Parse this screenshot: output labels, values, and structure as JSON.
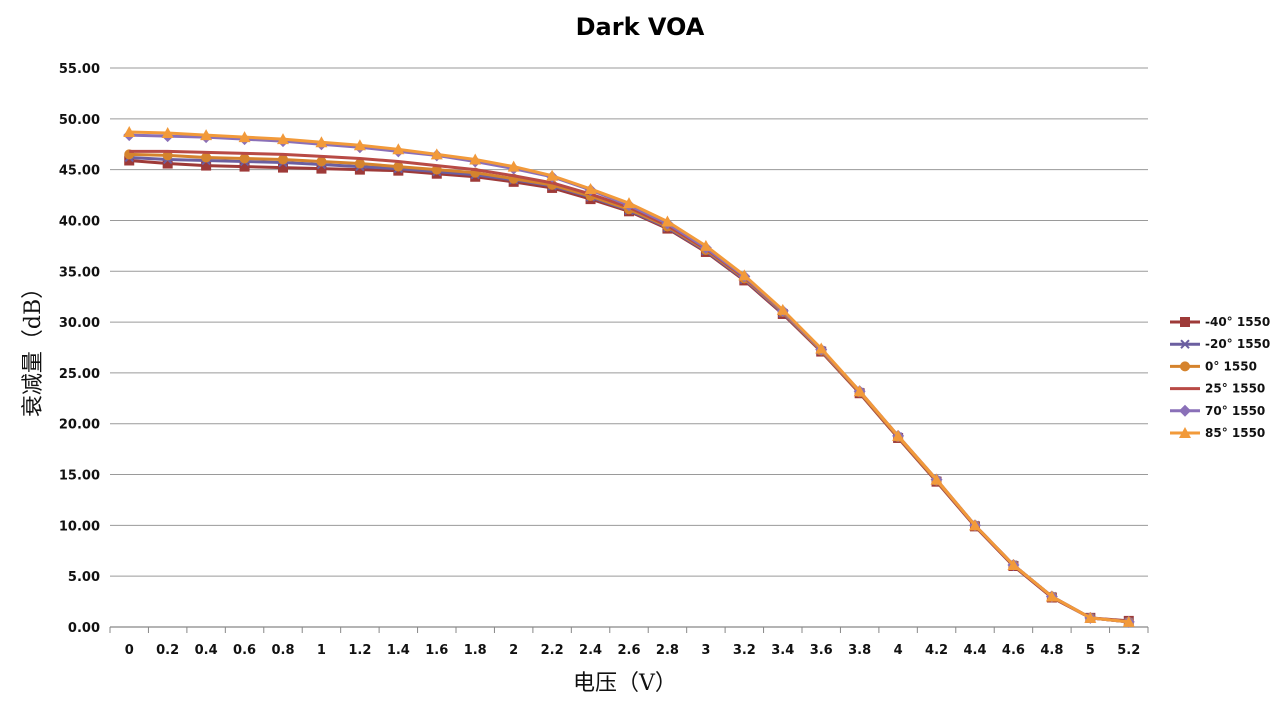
{
  "chart_data": {
    "type": "line",
    "title": "Dark VOA",
    "xlabel": "电压（V）",
    "ylabel": "衰减量（dB）",
    "x": [
      "0",
      "0.2",
      "0.4",
      "0.6",
      "0.8",
      "1",
      "1.2",
      "1.4",
      "1.6",
      "1.8",
      "2",
      "2.2",
      "2.4",
      "2.6",
      "2.8",
      "3",
      "3.2",
      "3.4",
      "3.6",
      "3.8",
      "4",
      "4.2",
      "4.4",
      "4.6",
      "4.8",
      "5",
      "5.2"
    ],
    "ylim": [
      0,
      55
    ],
    "yticks": [
      "0.00",
      "5.00",
      "10.00",
      "15.00",
      "20.00",
      "25.00",
      "30.00",
      "35.00",
      "40.00",
      "45.00",
      "50.00",
      "55.00"
    ],
    "grid": true,
    "legend_position": "right",
    "series": [
      {
        "name": "-40° 1550",
        "color": "#9e3a38",
        "marker": "square",
        "values": [
          45.9,
          45.6,
          45.4,
          45.3,
          45.2,
          45.1,
          45.0,
          44.9,
          44.6,
          44.3,
          43.8,
          43.2,
          42.1,
          40.9,
          39.2,
          36.9,
          34.1,
          30.8,
          27.1,
          23.0,
          18.6,
          14.3,
          9.9,
          6.0,
          2.9,
          0.9,
          0.6
        ]
      },
      {
        "name": "-20° 1550",
        "color": "#6b5fa0",
        "marker": "x",
        "values": [
          46.2,
          46.0,
          45.9,
          45.8,
          45.7,
          45.5,
          45.3,
          45.1,
          44.8,
          44.5,
          44.0,
          43.4,
          42.3,
          41.0,
          39.3,
          37.0,
          34.2,
          30.9,
          27.2,
          23.1,
          18.7,
          14.4,
          10.0,
          6.1,
          3.0,
          0.9,
          0.5
        ]
      },
      {
        "name": "0° 1550",
        "color": "#d5832d",
        "marker": "circle",
        "values": [
          46.5,
          46.4,
          46.2,
          46.1,
          46.0,
          45.8,
          45.6,
          45.3,
          45.0,
          44.7,
          44.1,
          43.5,
          42.4,
          41.1,
          39.4,
          37.1,
          34.3,
          31.0,
          27.2,
          23.1,
          18.7,
          14.4,
          10.0,
          6.1,
          3.0,
          0.9,
          0.5
        ]
      },
      {
        "name": "25° 1550",
        "color": "#b84a45",
        "marker": "none",
        "values": [
          46.8,
          46.8,
          46.7,
          46.6,
          46.5,
          46.3,
          46.1,
          45.8,
          45.4,
          45.0,
          44.4,
          43.7,
          42.6,
          41.3,
          39.5,
          37.2,
          34.4,
          31.1,
          27.3,
          23.2,
          18.8,
          14.5,
          10.0,
          6.1,
          3.0,
          0.9,
          0.5
        ]
      },
      {
        "name": "70° 1550",
        "color": "#8a70b8",
        "marker": "diamond",
        "values": [
          48.4,
          48.3,
          48.2,
          48.0,
          47.8,
          47.5,
          47.2,
          46.8,
          46.4,
          45.8,
          45.1,
          44.3,
          43.0,
          41.5,
          39.7,
          37.3,
          34.5,
          31.1,
          27.3,
          23.2,
          18.8,
          14.5,
          10.0,
          6.1,
          3.0,
          0.9,
          0.5
        ]
      },
      {
        "name": "85° 1550",
        "color": "#f29a3a",
        "marker": "triangle",
        "values": [
          48.7,
          48.6,
          48.4,
          48.2,
          48.0,
          47.7,
          47.4,
          47.0,
          46.5,
          46.0,
          45.3,
          44.4,
          43.1,
          41.7,
          39.9,
          37.5,
          34.6,
          31.2,
          27.4,
          23.2,
          18.8,
          14.5,
          10.0,
          6.1,
          3.0,
          0.9,
          0.5
        ]
      }
    ]
  }
}
